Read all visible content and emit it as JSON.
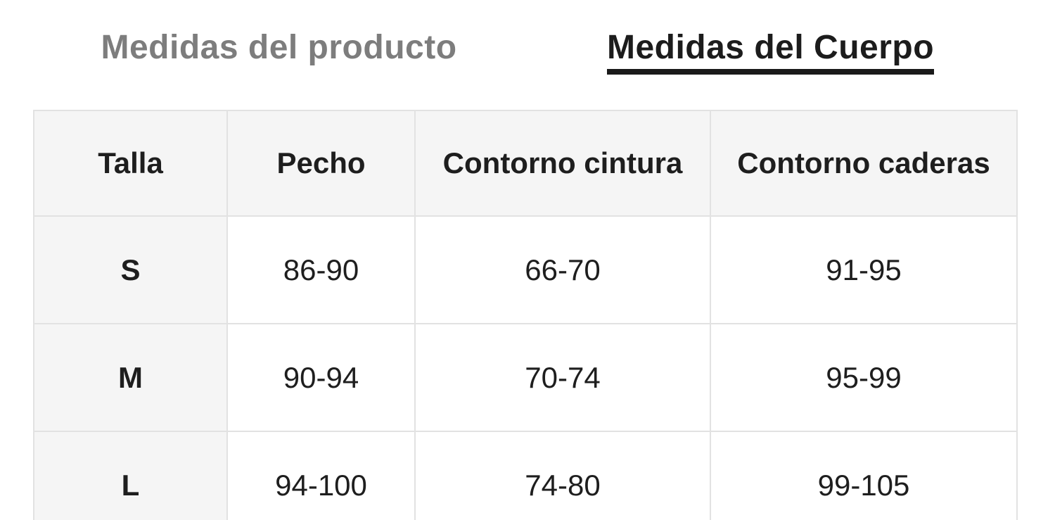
{
  "tabs": [
    {
      "label": "Medidas del producto",
      "active": false
    },
    {
      "label": "Medidas del Cuerpo",
      "active": true
    }
  ],
  "table": {
    "headers": [
      "Talla",
      "Pecho",
      "Contorno cintura",
      "Contorno caderas"
    ],
    "rows": [
      [
        "S",
        "86-90",
        "66-70",
        "91-95"
      ],
      [
        "M",
        "90-94",
        "70-74",
        "95-99"
      ],
      [
        "L",
        "94-100",
        "74-80",
        "99-105"
      ]
    ]
  },
  "colors": {
    "active_tab_text": "#1c1c1c",
    "active_tab_underline": "#1a1a1a",
    "inactive_tab_text": "#7d7d7d",
    "cell_header_bg": "#f5f5f5",
    "cell_body_bg": "#ffffff",
    "table_border": "#e2e2e2",
    "cell_text": "#1e1e1e"
  }
}
